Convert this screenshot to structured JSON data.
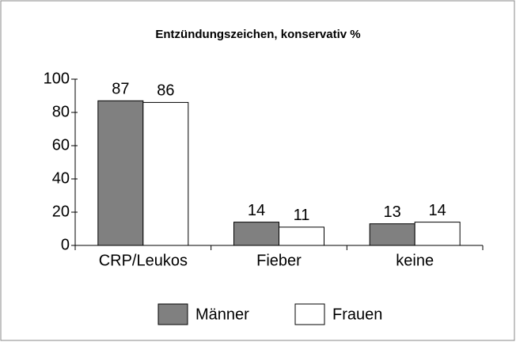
{
  "chart_data": {
    "type": "bar",
    "title": "Entzündungszeichen, konservativ %",
    "categories": [
      "CRP/Leukos",
      "Fieber",
      "keine"
    ],
    "series": [
      {
        "name": "Männer",
        "color": "#808080",
        "values": [
          87,
          14,
          13
        ]
      },
      {
        "name": "Frauen",
        "color": "#ffffff",
        "values": [
          86,
          11,
          14
        ]
      }
    ],
    "ylim": [
      0,
      100
    ],
    "yticks": [
      0,
      20,
      40,
      60,
      80,
      100
    ],
    "grid": false,
    "legend": "bottom"
  }
}
